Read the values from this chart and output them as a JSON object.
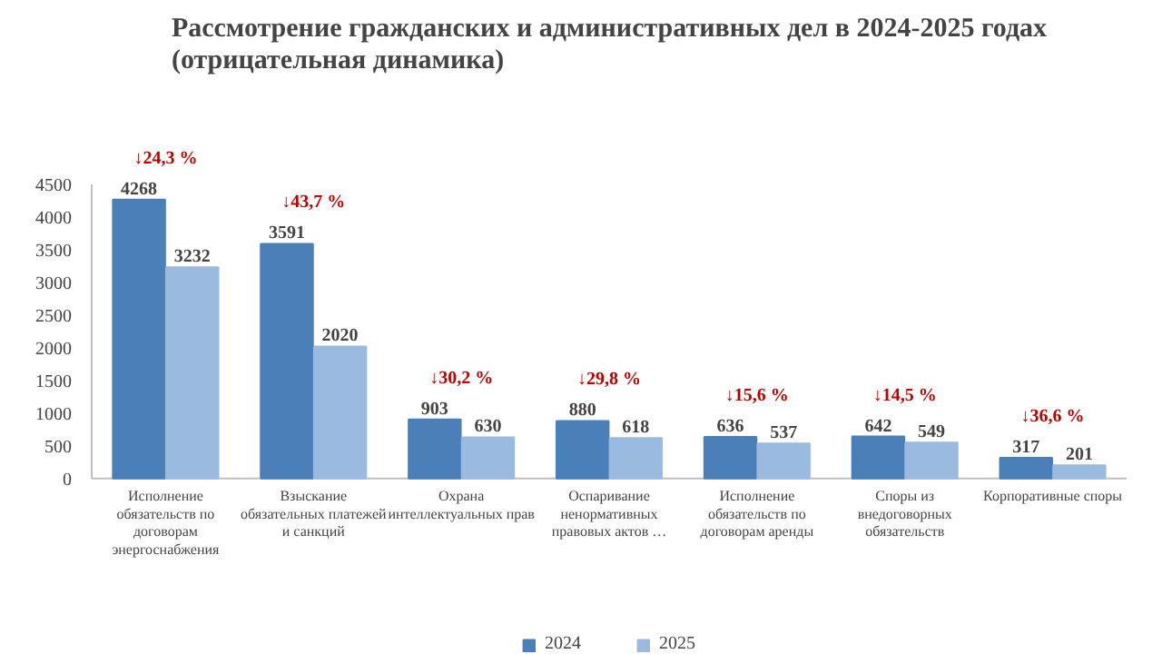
{
  "chart_data": {
    "type": "bar",
    "title": "Рассмотрение гражданских и административных дел в 2024-2025 годах\n(отрицательная динамика)",
    "categories": [
      "Исполнение\nобязательств по\nдоговорам\nэнергоснабжения",
      "Взыскание\nобязательных платежей\nи санкций",
      "Охрана\nинтеллектуальных прав",
      "Оспаривание\nненормативных\nправовых актов …",
      "Исполнение\nобязательств по\nдоговорам аренды",
      "Споры из\nвнедоговорных\nобязательств",
      "Корпоративные споры"
    ],
    "series": [
      {
        "name": "2024",
        "color": "#4a7fb8",
        "values": [
          4268,
          3591,
          903,
          880,
          636,
          642,
          317
        ]
      },
      {
        "name": "2025",
        "color": "#9bbadf",
        "values": [
          3232,
          2020,
          630,
          618,
          537,
          549,
          201
        ]
      }
    ],
    "annotations": [
      "↓24,3 %",
      "↓43,7 %",
      "↓30,2 %",
      "↓29,8 %",
      "↓15,6 %",
      "↓14,5 %",
      "↓36,6 %"
    ],
    "ylim": [
      0,
      4500
    ],
    "yticks": [
      0,
      500,
      1000,
      1500,
      2000,
      2500,
      3000,
      3500,
      4000,
      4500
    ],
    "data_labels": true,
    "grid": false,
    "legend": "bottom"
  }
}
